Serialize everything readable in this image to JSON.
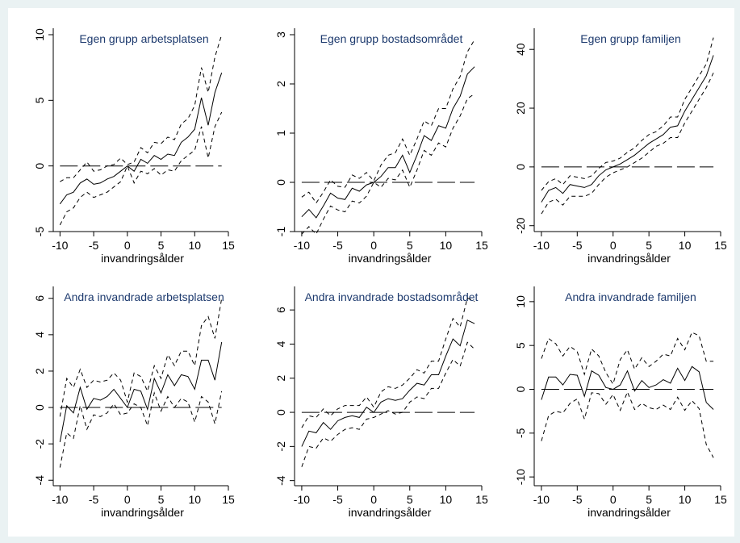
{
  "colors": {
    "background": "#eaf2f3",
    "plot": "#ffffff",
    "title": "#1d3a6e",
    "line": "#000000"
  },
  "chart_data": [
    {
      "type": "line",
      "title": "Egen grupp arbetsplatsen",
      "xlabel": "invandringsålder",
      "xlim": [
        -11,
        15
      ],
      "ylim": [
        -5,
        10
      ],
      "xticks": [
        -10,
        -5,
        0,
        5,
        10,
        15
      ],
      "yticks": [
        -5,
        0,
        5,
        10
      ],
      "x": [
        -10,
        -9,
        -8,
        -7,
        -6,
        -5,
        -4,
        -3,
        -2,
        -1,
        0,
        1,
        2,
        3,
        4,
        5,
        6,
        7,
        8,
        9,
        10,
        11,
        12,
        13,
        14
      ],
      "series": [
        {
          "style": "solid",
          "values": [
            -2.9,
            -2.2,
            -2.0,
            -1.3,
            -1.0,
            -1.4,
            -1.3,
            -1.0,
            -0.8,
            -0.4,
            0,
            -0.4,
            0.5,
            0.2,
            0.8,
            0.5,
            0.9,
            0.8,
            1.8,
            2.2,
            2.8,
            5.2,
            3.1,
            5.6,
            7.1
          ]
        },
        {
          "style": "dashed",
          "values": [
            -1.2,
            -0.9,
            -0.9,
            -0.3,
            0.3,
            -0.4,
            -0.3,
            0.0,
            0.1,
            0.6,
            0.1,
            0.3,
            1.4,
            1.0,
            1.8,
            1.7,
            2.2,
            2.0,
            3.2,
            3.6,
            4.6,
            7.5,
            5.6,
            8.3,
            10.0
          ]
        },
        {
          "style": "dashed",
          "values": [
            -4.5,
            -3.5,
            -3.2,
            -2.4,
            -2.0,
            -2.4,
            -2.2,
            -2.0,
            -1.6,
            -1.2,
            0,
            -1.3,
            -0.4,
            -0.6,
            -0.2,
            -0.7,
            -0.3,
            -0.4,
            0.4,
            0.8,
            1.2,
            3.0,
            0.6,
            3.0,
            4.1
          ]
        },
        {
          "style": "longdash",
          "values": [
            0,
            0
          ],
          "x": [
            -10,
            14
          ]
        }
      ]
    },
    {
      "type": "line",
      "title": "Egen grupp bostadsområdet",
      "xlabel": "invandringsålder",
      "xlim": [
        -11,
        15
      ],
      "ylim": [
        -1,
        3
      ],
      "xticks": [
        -10,
        -5,
        0,
        5,
        10,
        15
      ],
      "yticks": [
        -1,
        0,
        1,
        2,
        3
      ],
      "x": [
        -10,
        -9,
        -8,
        -7,
        -6,
        -5,
        -4,
        -3,
        -2,
        -1,
        0,
        1,
        2,
        3,
        4,
        5,
        6,
        7,
        8,
        9,
        10,
        11,
        12,
        13,
        14
      ],
      "series": [
        {
          "style": "solid",
          "values": [
            -0.7,
            -0.55,
            -0.72,
            -0.48,
            -0.22,
            -0.32,
            -0.35,
            -0.12,
            -0.18,
            -0.05,
            0,
            0.12,
            0.3,
            0.3,
            0.55,
            0.2,
            0.55,
            0.95,
            0.85,
            1.15,
            1.1,
            1.5,
            1.75,
            2.2,
            2.35
          ]
        },
        {
          "style": "dashed",
          "values": [
            -0.3,
            -0.2,
            -0.42,
            -0.2,
            0.05,
            -0.08,
            -0.1,
            0.15,
            0.08,
            0.2,
            0.03,
            0.35,
            0.55,
            0.6,
            0.88,
            0.55,
            0.88,
            1.25,
            1.15,
            1.5,
            1.5,
            1.9,
            2.15,
            2.65,
            2.9
          ]
        },
        {
          "style": "dashed",
          "values": [
            -1.05,
            -0.9,
            -1.05,
            -0.75,
            -0.48,
            -0.56,
            -0.6,
            -0.38,
            -0.42,
            -0.28,
            0,
            -0.1,
            0.08,
            0.05,
            0.25,
            -0.1,
            0.25,
            0.65,
            0.55,
            0.8,
            0.72,
            1.1,
            1.35,
            1.7,
            1.8
          ]
        },
        {
          "style": "longdash",
          "values": [
            0,
            0
          ],
          "x": [
            -10,
            14
          ]
        }
      ]
    },
    {
      "type": "line",
      "title": "Egen grupp familjen",
      "xlabel": "invandringsålder",
      "xlim": [
        -11,
        15
      ],
      "ylim": [
        -22,
        45
      ],
      "xticks": [
        -10,
        -5,
        0,
        5,
        10,
        15
      ],
      "yticks": [
        -20,
        0,
        20,
        40
      ],
      "x": [
        -10,
        -9,
        -8,
        -7,
        -6,
        -5,
        -4,
        -3,
        -2,
        -1,
        0,
        1,
        2,
        3,
        4,
        5,
        6,
        7,
        8,
        9,
        10,
        11,
        12,
        13,
        14
      ],
      "series": [
        {
          "style": "solid",
          "values": [
            -12,
            -8,
            -7,
            -9,
            -6,
            -6.5,
            -7,
            -6,
            -3,
            -1,
            0,
            1,
            2.5,
            4,
            6,
            8,
            9.5,
            11,
            13.5,
            14,
            19,
            23,
            27,
            31,
            38
          ]
        },
        {
          "style": "dashed",
          "values": [
            -8,
            -5,
            -4,
            -6,
            -3,
            -3.5,
            -4,
            -3,
            -0.5,
            1.5,
            2,
            3,
            5,
            6.5,
            9,
            11,
            12,
            14,
            17,
            17,
            23,
            27,
            31,
            35,
            44
          ]
        },
        {
          "style": "dashed",
          "values": [
            -16,
            -12,
            -11,
            -13,
            -10,
            -10,
            -10,
            -9,
            -6,
            -3.5,
            -2,
            -1,
            0,
            1.5,
            3,
            5,
            7,
            8,
            10,
            10,
            15,
            19,
            23,
            27,
            32
          ]
        },
        {
          "style": "longdash",
          "values": [
            0,
            0
          ],
          "x": [
            -10,
            14
          ]
        }
      ]
    },
    {
      "type": "line",
      "title": "Andra invandrade arbetsplatsen",
      "xlabel": "invandringsålder",
      "xlim": [
        -11,
        15
      ],
      "ylim": [
        -4.3,
        6.3
      ],
      "xticks": [
        -10,
        -5,
        0,
        5,
        10,
        15
      ],
      "yticks": [
        -4,
        -2,
        0,
        2,
        4,
        6
      ],
      "x": [
        -10,
        -9,
        -8,
        -7,
        -6,
        -5,
        -4,
        -3,
        -2,
        -1,
        0,
        1,
        2,
        3,
        4,
        5,
        6,
        7,
        8,
        9,
        10,
        11,
        12,
        13,
        14
      ],
      "series": [
        {
          "style": "solid",
          "values": [
            -1.9,
            0.1,
            -0.3,
            1.1,
            -0.1,
            0.5,
            0.4,
            0.6,
            1.0,
            0.5,
            0.0,
            1.0,
            0.9,
            -0.1,
            1.6,
            0.8,
            1.8,
            1.2,
            1.8,
            1.7,
            1.0,
            2.6,
            2.6,
            1.5,
            3.6
          ]
        },
        {
          "style": "dashed",
          "values": [
            -0.5,
            1.6,
            1.1,
            2.1,
            1.1,
            1.5,
            1.4,
            1.5,
            1.9,
            1.5,
            0.3,
            1.9,
            1.7,
            0.9,
            2.3,
            1.6,
            2.9,
            2.3,
            3.1,
            3.1,
            2.3,
            4.5,
            5.0,
            3.8,
            6.0
          ]
        },
        {
          "style": "dashed",
          "values": [
            -3.3,
            -1.4,
            -1.7,
            0.1,
            -1.2,
            -0.4,
            -0.5,
            -0.3,
            0.2,
            -0.4,
            -0.3,
            0.2,
            0.0,
            -1.0,
            0.8,
            -0.2,
            0.6,
            0.0,
            0.5,
            0.3,
            -0.8,
            0.6,
            0.3,
            -0.9,
            0.9
          ]
        },
        {
          "style": "longdash",
          "values": [
            0,
            0
          ],
          "x": [
            -10,
            14
          ]
        }
      ]
    },
    {
      "type": "line",
      "title": "Andra invandrade bostadsområdet",
      "xlabel": "invandringsålder",
      "xlim": [
        -11,
        15
      ],
      "ylim": [
        -4.3,
        7
      ],
      "xticks": [
        -10,
        -5,
        0,
        5,
        10,
        15
      ],
      "yticks": [
        -4,
        -2,
        0,
        2,
        4,
        6
      ],
      "x": [
        -10,
        -9,
        -8,
        -7,
        -6,
        -5,
        -4,
        -3,
        -2,
        -1,
        0,
        1,
        2,
        3,
        4,
        5,
        6,
        7,
        8,
        9,
        10,
        11,
        12,
        13,
        14
      ],
      "series": [
        {
          "style": "solid",
          "values": [
            -2.0,
            -1.1,
            -1.2,
            -0.6,
            -1.0,
            -0.5,
            -0.3,
            -0.2,
            -0.3,
            0.3,
            0.0,
            0.6,
            0.8,
            0.7,
            0.8,
            1.3,
            1.7,
            1.6,
            2.2,
            2.2,
            3.3,
            4.3,
            3.9,
            5.4,
            5.2
          ]
        },
        {
          "style": "dashed",
          "values": [
            -0.9,
            -0.2,
            -0.3,
            0.2,
            -0.2,
            0.2,
            0.4,
            0.4,
            0.4,
            0.9,
            0.3,
            1.2,
            1.5,
            1.4,
            1.6,
            2.0,
            2.5,
            2.3,
            3.0,
            3.0,
            4.3,
            5.5,
            5.0,
            6.7,
            6.5
          ]
        },
        {
          "style": "dashed",
          "values": [
            -3.2,
            -2.0,
            -2.1,
            -1.5,
            -1.7,
            -1.3,
            -1.0,
            -0.9,
            -1.0,
            -0.4,
            -0.3,
            -0.1,
            0.1,
            -0.1,
            0.0,
            0.6,
            0.9,
            0.8,
            1.4,
            1.4,
            2.3,
            3.1,
            2.7,
            4.1,
            3.7
          ]
        },
        {
          "style": "longdash",
          "values": [
            0,
            0
          ],
          "x": [
            -10,
            14
          ]
        }
      ]
    },
    {
      "type": "line",
      "title": "Andra invandrade familjen",
      "xlabel": "invandringsålder",
      "xlim": [
        -11,
        15
      ],
      "ylim": [
        -11,
        11
      ],
      "xticks": [
        -10,
        -5,
        0,
        5,
        10,
        15
      ],
      "yticks": [
        -10,
        -5,
        0,
        5,
        10
      ],
      "x": [
        -10,
        -9,
        -8,
        -7,
        -6,
        -5,
        -4,
        -3,
        -2,
        -1,
        0,
        1,
        2,
        3,
        4,
        5,
        6,
        7,
        8,
        9,
        10,
        11,
        12,
        13,
        14
      ],
      "series": [
        {
          "style": "solid",
          "values": [
            -1.2,
            1.4,
            1.4,
            0.5,
            1.7,
            1.6,
            -0.8,
            2.1,
            1.6,
            0.2,
            0.0,
            0.5,
            2.1,
            -0.2,
            1.0,
            0.2,
            0.5,
            1.1,
            0.7,
            2.4,
            1.0,
            2.6,
            2.0,
            -1.5,
            -2.3
          ]
        },
        {
          "style": "dashed",
          "values": [
            3.5,
            5.8,
            5.2,
            3.8,
            4.9,
            4.3,
            1.7,
            4.6,
            3.8,
            1.9,
            0.6,
            3.4,
            4.5,
            2.3,
            3.6,
            2.6,
            3.2,
            4.0,
            3.8,
            5.8,
            4.5,
            6.5,
            6.1,
            3.2,
            3.2
          ]
        },
        {
          "style": "dashed",
          "values": [
            -5.9,
            -3.0,
            -2.5,
            -2.7,
            -1.6,
            -1.1,
            -3.4,
            -0.4,
            -0.5,
            -1.7,
            -0.6,
            -2.4,
            -0.3,
            -2.3,
            -1.6,
            -2.1,
            -2.3,
            -1.8,
            -2.3,
            -0.9,
            -2.4,
            -1.3,
            -2.2,
            -6.3,
            -7.8
          ]
        },
        {
          "style": "longdash",
          "values": [
            0,
            0
          ],
          "x": [
            -10,
            14
          ]
        }
      ]
    }
  ]
}
